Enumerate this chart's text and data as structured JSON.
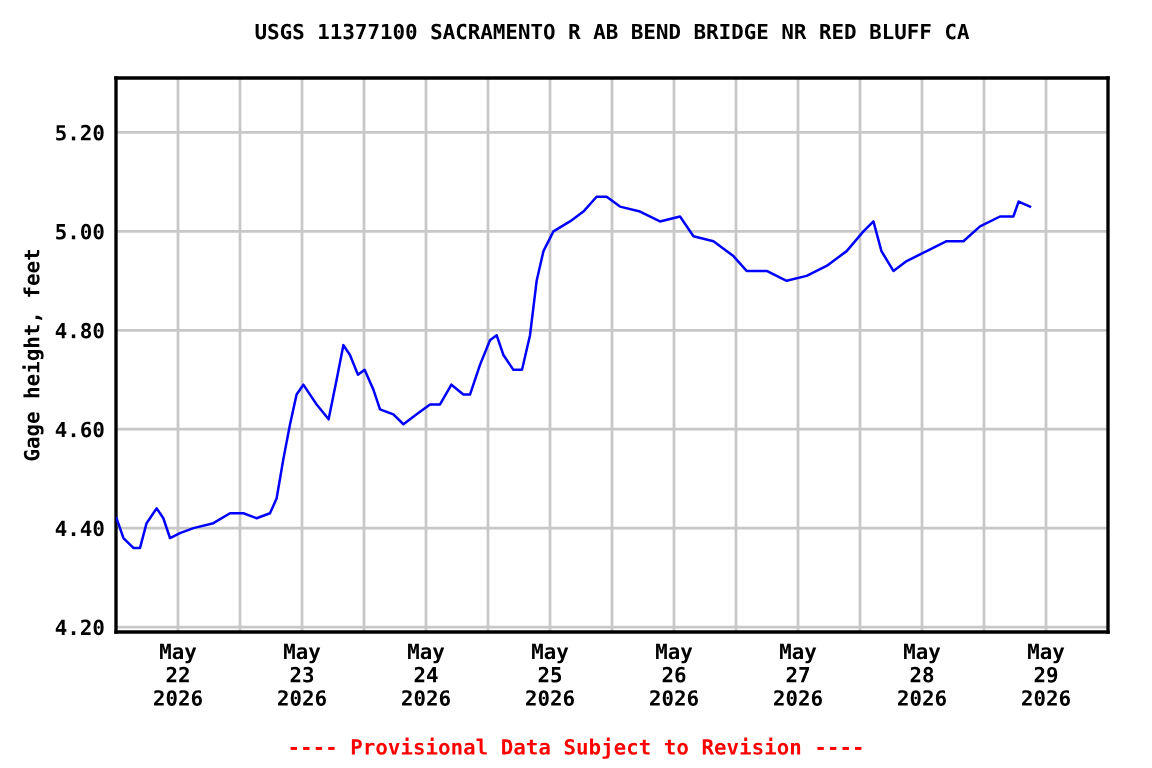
{
  "chart_data": {
    "type": "line",
    "title": "USGS 11377100 SACRAMENTO R AB BEND BRIDGE NR RED BLUFF CA",
    "ylabel": "Gage height, feet",
    "annotations": [
      "---- Provisional Data Subject to Revision ----"
    ],
    "x": [
      "2026-05-22T00:06",
      "2026-05-22T01:26",
      "2026-05-22T03:22",
      "2026-05-22T04:39",
      "2026-05-22T05:55",
      "2026-05-22T07:52",
      "2026-05-22T09:10",
      "2026-05-22T10:27",
      "2026-05-22T12:23",
      "2026-05-22T14:59",
      "2026-05-22T18:51",
      "2026-05-22T22:04",
      "2026-05-23T00:40",
      "2026-05-23T03:13",
      "2026-05-23T05:48",
      "2026-05-23T07:05",
      "2026-05-23T08:24",
      "2026-05-23T09:41",
      "2026-05-23T10:57",
      "2026-05-23T12:16",
      "2026-05-23T13:33",
      "2026-05-23T14:50",
      "2026-05-23T17:09",
      "2026-05-23T18:42",
      "2026-05-23T20:01",
      "2026-05-23T21:17",
      "2026-05-23T22:50",
      "2026-05-24T00:07",
      "2026-05-24T01:49",
      "2026-05-24T03:06",
      "2026-05-24T05:41",
      "2026-05-24T07:38",
      "2026-05-24T10:11",
      "2026-05-24T12:47",
      "2026-05-24T14:43",
      "2026-05-24T16:55",
      "2026-05-24T19:14",
      "2026-05-24T20:31",
      "2026-05-24T22:27",
      "2026-05-25T00:23",
      "2026-05-25T01:40",
      "2026-05-25T02:59",
      "2026-05-25T04:55",
      "2026-05-25T06:35",
      "2026-05-25T08:08",
      "2026-05-25T09:25",
      "2026-05-25T10:44",
      "2026-05-25T12:40",
      "2026-05-25T15:52",
      "2026-05-25T18:28",
      "2026-05-25T21:01",
      "2026-05-25T22:58",
      "2026-05-26T01:33",
      "2026-05-26T05:25",
      "2026-05-26T09:17",
      "2026-05-26T13:10",
      "2026-05-26T15:46",
      "2026-05-26T19:38",
      "2026-05-26T23:30",
      "2026-05-27T02:03",
      "2026-05-27T05:56",
      "2026-05-27T09:48",
      "2026-05-27T13:40",
      "2026-05-27T17:32",
      "2026-05-27T21:25",
      "2026-05-28T00:40",
      "2026-05-28T02:36",
      "2026-05-28T04:09",
      "2026-05-28T06:28",
      "2026-05-28T09:02",
      "2026-05-28T12:54",
      "2026-05-28T16:46",
      "2026-05-28T20:01",
      "2026-05-28T23:14",
      "2026-05-29T03:06",
      "2026-05-29T05:41",
      "2026-05-29T06:42",
      "2026-05-29T08:54"
    ],
    "series": [
      {
        "color": "#0000ff",
        "values": [
          4.42,
          4.38,
          4.36,
          4.36,
          4.41,
          4.44,
          4.42,
          4.38,
          4.39,
          4.4,
          4.41,
          4.43,
          4.43,
          4.42,
          4.43,
          4.46,
          4.54,
          4.61,
          4.67,
          4.69,
          4.67,
          4.65,
          4.62,
          4.7,
          4.77,
          4.75,
          4.71,
          4.72,
          4.68,
          4.64,
          4.63,
          4.61,
          4.63,
          4.65,
          4.65,
          4.69,
          4.67,
          4.67,
          4.73,
          4.78,
          4.79,
          4.75,
          4.72,
          4.72,
          4.79,
          4.9,
          4.96,
          5.0,
          5.02,
          5.04,
          5.07,
          5.07,
          5.05,
          5.04,
          5.02,
          5.03,
          4.99,
          4.98,
          4.95,
          4.92,
          4.92,
          4.9,
          4.91,
          4.93,
          4.96,
          5.0,
          5.02,
          4.96,
          4.92,
          4.94,
          4.96,
          4.98,
          4.98,
          5.01,
          5.03,
          5.03,
          5.06,
          5.05
        ]
      }
    ],
    "xlim": [
      "2026-05-22",
      "2026-05-30"
    ],
    "xticks": [
      {
        "value": "2026-05-22T12:00",
        "label": "May\n22\n2026"
      },
      {
        "value": "2026-05-23T12:00",
        "label": "May\n23\n2026"
      },
      {
        "value": "2026-05-24T12:00",
        "label": "May\n24\n2026"
      },
      {
        "value": "2026-05-25T12:00",
        "label": "May\n25\n2026"
      },
      {
        "value": "2026-05-26T12:00",
        "label": "May\n26\n2026"
      },
      {
        "value": "2026-05-27T12:00",
        "label": "May\n27\n2026"
      },
      {
        "value": "2026-05-28T12:00",
        "label": "May\n28\n2026"
      },
      {
        "value": "2026-05-29T12:00",
        "label": "May\n29\n2026"
      },
      {
        "value": "2026-05-23",
        "label": null
      },
      {
        "value": "2026-05-24",
        "label": null
      },
      {
        "value": "2026-05-25",
        "label": null
      },
      {
        "value": "2026-05-26",
        "label": null
      },
      {
        "value": "2026-05-27",
        "label": null
      },
      {
        "value": "2026-05-28",
        "label": null
      },
      {
        "value": "2026-05-29",
        "label": null
      }
    ],
    "ylim": [
      4.19,
      5.31
    ],
    "yticks": [
      {
        "value": 4.2,
        "label": "4.20"
      },
      {
        "value": 4.4,
        "label": "4.40"
      },
      {
        "value": 4.6,
        "label": "4.60"
      },
      {
        "value": 4.8,
        "label": "4.80"
      },
      {
        "value": 5.0,
        "label": "5.00"
      },
      {
        "value": 5.2,
        "label": "5.20"
      }
    ],
    "grid": true,
    "legend": false,
    "marker": "none",
    "line_style": "solid"
  }
}
